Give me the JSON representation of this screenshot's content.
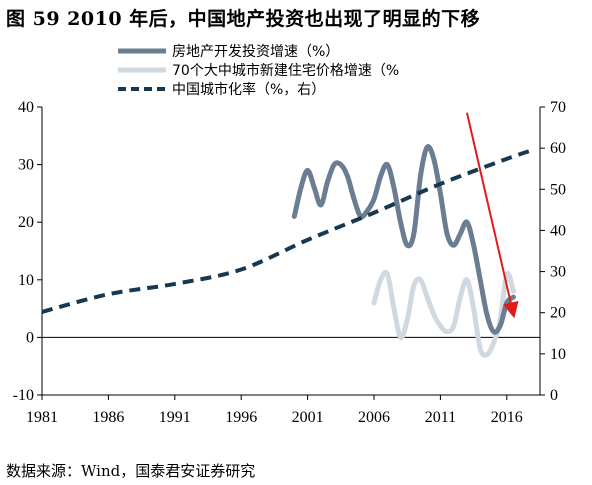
{
  "title": "图 59 2010 年后，中国地产投资也出现了明显的下移",
  "source": "数据来源：Wind，国泰君安证券研究",
  "chart_data": {
    "type": "line",
    "title": "图 59 2010 年后，中国地产投资也出现了明显的下移",
    "x_ticks": [
      "1981",
      "1986",
      "1991",
      "1996",
      "2001",
      "2006",
      "2011",
      "2016"
    ],
    "xlim": [
      1981,
      2018.5
    ],
    "y_left": {
      "ticks": [
        "40",
        "30",
        "20",
        "10",
        "0",
        "-10"
      ],
      "lim": [
        -10,
        40
      ]
    },
    "y_right": {
      "ticks": [
        "70",
        "60",
        "50",
        "40",
        "30",
        "20",
        "10",
        "0"
      ],
      "lim": [
        0,
        70
      ]
    },
    "legend_position": "top",
    "series": [
      {
        "name": "房地产开发投资增速（%）",
        "axis": "left",
        "color": "#6a7d92",
        "style": "solid",
        "x": [
          2000,
          2000.5,
          2001,
          2001.5,
          2002,
          2002.5,
          2003,
          2003.5,
          2004,
          2004.5,
          2005,
          2005.5,
          2006,
          2006.5,
          2007,
          2007.5,
          2008,
          2008.5,
          2009,
          2009.5,
          2010,
          2010.5,
          2011,
          2011.5,
          2012,
          2012.5,
          2013,
          2013.5,
          2014,
          2014.5,
          2015,
          2015.5,
          2016,
          2016.5
        ],
        "y": [
          21,
          26,
          29,
          26,
          23,
          27,
          30,
          30,
          28,
          24,
          21,
          22,
          24,
          28,
          30,
          26,
          20,
          16,
          18,
          28,
          33,
          31,
          25,
          18,
          16,
          18,
          20,
          16,
          10,
          4,
          1,
          2,
          6,
          7
        ]
      },
      {
        "name": "70个大中城市新建住宅价格增速（%",
        "axis": "left",
        "color": "#d0d9e2",
        "style": "solid",
        "x": [
          2006,
          2006.5,
          2007,
          2007.5,
          2008,
          2008.5,
          2009,
          2009.5,
          2010,
          2010.5,
          2011,
          2011.5,
          2012,
          2012.5,
          2013,
          2013.5,
          2014,
          2014.5,
          2015,
          2015.5,
          2016,
          2016.5
        ],
        "y": [
          6,
          10,
          11,
          5,
          0,
          3,
          9,
          10,
          7,
          4,
          2,
          1,
          2,
          7,
          10,
          5,
          -2,
          -3,
          -1,
          3,
          11,
          8
        ]
      },
      {
        "name": "中国城市化率（%，右）",
        "axis": "right",
        "color": "#17384f",
        "style": "dashed",
        "x": [
          1981,
          1986,
          1991,
          1996,
          2001,
          2006,
          2011,
          2016,
          2018
        ],
        "y": [
          20.2,
          24.5,
          27,
          30.5,
          37.7,
          44.3,
          51.3,
          57.4,
          59.6
        ]
      }
    ],
    "annotation": {
      "type": "arrow",
      "color": "#e11a1a",
      "from": {
        "x": 2013,
        "y_left": 39
      },
      "to": {
        "x": 2016.5,
        "y_left": 4
      }
    }
  }
}
